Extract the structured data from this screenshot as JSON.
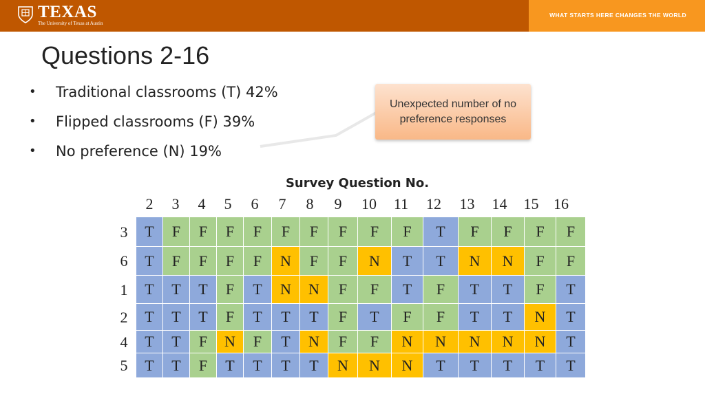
{
  "header": {
    "logo_text": "TEXAS",
    "logo_subtext": "The University of Texas at Austin",
    "tagline": "WHAT STARTS HERE CHANGES THE WORLD",
    "colors": {
      "primary": "#bf5700",
      "secondary": "#f8971f"
    }
  },
  "slide": {
    "title": "Questions 2-16",
    "bullets": [
      "Traditional classrooms (T) 42%",
      "Flipped classrooms (F) 39%",
      "No preference (N) 19%"
    ],
    "callout": "Unexpected number of no preference responses"
  },
  "table": {
    "title": "Survey Question No.",
    "question_numbers": [
      "2",
      "3",
      "4",
      "5",
      "6",
      "7",
      "8",
      "9",
      "10",
      "11",
      "12",
      "13",
      "14",
      "15",
      "16"
    ],
    "row_labels": [
      "3",
      "6",
      "1",
      "2",
      "4",
      "5"
    ],
    "rows": [
      [
        "T",
        "F",
        "F",
        "F",
        "F",
        "F",
        "F",
        "F",
        "F",
        "F",
        "T",
        "F",
        "F",
        "F",
        "F"
      ],
      [
        "T",
        "F",
        "F",
        "F",
        "F",
        "N",
        "F",
        "F",
        "N",
        "T",
        "T",
        "N",
        "N",
        "F",
        "F"
      ],
      [
        "T",
        "T",
        "T",
        "F",
        "T",
        "N",
        "N",
        "F",
        "F",
        "T",
        "F",
        "T",
        "T",
        "F",
        "T"
      ],
      [
        "T",
        "T",
        "T",
        "F",
        "T",
        "T",
        "T",
        "F",
        "T",
        "F",
        "F",
        "T",
        "T",
        "N",
        "T"
      ],
      [
        "T",
        "T",
        "F",
        "N",
        "F",
        "T",
        "N",
        "F",
        "F",
        "N",
        "N",
        "N",
        "N",
        "N",
        "T"
      ],
      [
        "T",
        "T",
        "F",
        "T",
        "T",
        "T",
        "T",
        "N",
        "N",
        "N",
        "T",
        "T",
        "T",
        "T",
        "T"
      ]
    ],
    "colors": {
      "T": "#8ea9db",
      "F": "#a9d08e",
      "N": "#ffc000"
    }
  }
}
